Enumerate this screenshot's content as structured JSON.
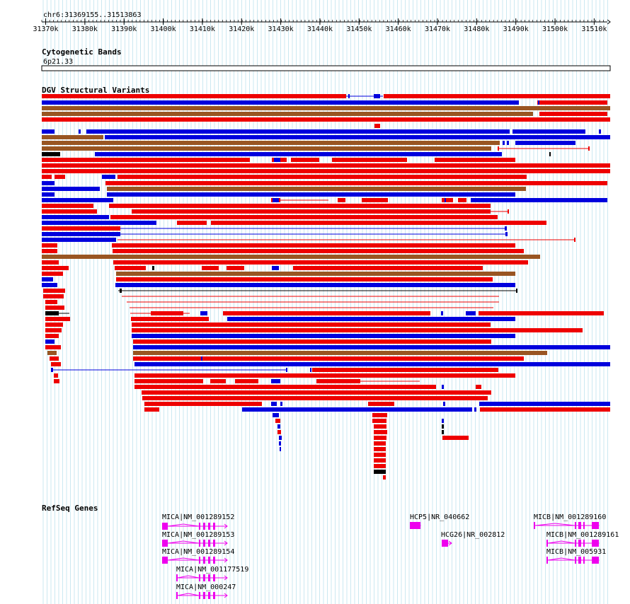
{
  "region": "chr6:31369155..31513863",
  "ruler": {
    "ticks": [
      "31370k",
      "31380k",
      "31390k",
      "31400k",
      "31410k",
      "31420k",
      "31430k",
      "31440k",
      "31450k",
      "31460k",
      "31470k",
      "31480k",
      "31490k",
      "31500k",
      "31510k"
    ]
  },
  "cytoband": {
    "title": "Cytogenetic Bands",
    "band": "6p21.33"
  },
  "dgv": {
    "title": "DGV Structural Variants"
  },
  "refseq": {
    "title": "RefSeq Genes",
    "genes": [
      {
        "label": "MICA|NM_001289152",
        "strand": "+"
      },
      {
        "label": "MICA|NM_001289153",
        "strand": "+"
      },
      {
        "label": "MICA|NM_001289154",
        "strand": "+"
      },
      {
        "label": "MICA|NM_001177519",
        "strand": "+"
      },
      {
        "label": "MICA|NM_000247",
        "strand": "+"
      },
      {
        "label": "HCP5|NR_040662",
        "strand": "+"
      },
      {
        "label": "HCG26|NR_002812",
        "strand": "+"
      },
      {
        "label": "MICB|NM_001289160",
        "strand": "+"
      },
      {
        "label": "MICB|NM_001289161",
        "strand": "+"
      },
      {
        "label": "MICB|NM_005931",
        "strand": "+"
      }
    ]
  },
  "colors": {
    "loss": "#ee0000",
    "gain": "#0000dd",
    "complex": "#995522",
    "other": "#000000",
    "gene": "#ee00ee",
    "grid": "#a8d8e8"
  }
}
